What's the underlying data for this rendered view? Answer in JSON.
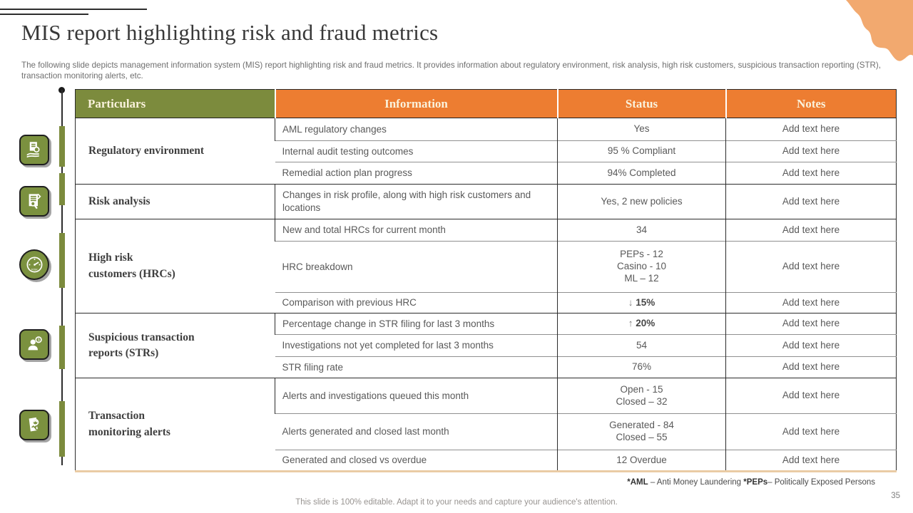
{
  "slide": {
    "title": "MIS report highlighting risk and fraud metrics",
    "subtitle": "The following slide depicts management information system (MIS) report highlighting risk and fraud metrics. It provides information about regulatory environment, risk analysis, high risk customers, suspicious transaction reporting (STR), transaction monitoring alerts, etc.",
    "page_number": "35",
    "editable_note": "This slide is 100% editable. Adapt it to your needs and capture your audience's attention.",
    "footnote": {
      "abbr1": "*AML",
      "text1": " – Anti Money Laundering ",
      "abbr2": "*PEPs",
      "text2": "– Politically Exposed Persons"
    }
  },
  "colors": {
    "olive_green": "#7c8b3d",
    "orange": "#ed7d31",
    "peach_blob": "#f2a96f",
    "header_text": "#faf2dc"
  },
  "icons": [
    {
      "name": "regulatory-hand-document-icon"
    },
    {
      "name": "audit-report-icon"
    },
    {
      "name": "risk-gauge-icon"
    },
    {
      "name": "suspicious-person-money-icon"
    },
    {
      "name": "monitoring-search-report-icon"
    }
  ],
  "table": {
    "headers": [
      "Particulars",
      "Information",
      "Status",
      "Notes"
    ],
    "groups": [
      {
        "particular": "Regulatory environment",
        "rows": [
          {
            "info": "AML regulatory changes",
            "status": "Yes",
            "notes": "Add text here"
          },
          {
            "info": "Internal audit testing outcomes",
            "status": "95 % Compliant",
            "notes": "Add text here"
          },
          {
            "info": "Remedial action plan progress",
            "status": "94% Completed",
            "notes": "Add text here"
          }
        ]
      },
      {
        "particular": "Risk analysis",
        "rows": [
          {
            "info": "Changes in risk profile, along with high risk customers and locations",
            "status": "Yes, 2 new policies",
            "notes": "Add text here"
          }
        ]
      },
      {
        "particular": "High risk\ncustomers (HRCs)",
        "rows": [
          {
            "info": "New and total HRCs for current month",
            "status": "34",
            "notes": "Add text here"
          },
          {
            "info": "HRC breakdown",
            "status_lines": [
              "PEPs - 12",
              "Casino - 10",
              "ML – 12"
            ],
            "notes": "Add text here"
          },
          {
            "info": "Comparison with previous HRC",
            "status_arrow": "↓",
            "status_bold": "15%",
            "notes": "Add text here"
          }
        ]
      },
      {
        "particular": "Suspicious transaction\nreports (STRs)",
        "rows": [
          {
            "info": "Percentage change in STR filing for last 3 months",
            "status_arrow": "↑",
            "status_bold": "20%",
            "notes": "Add text here"
          },
          {
            "info": "Investigations not yet completed for last 3 months",
            "status": "54",
            "notes": "Add text here"
          },
          {
            "info": "STR filing rate",
            "status": "76%",
            "notes": "Add text here"
          }
        ]
      },
      {
        "particular": "Transaction\nmonitoring alerts",
        "rows": [
          {
            "info": "Alerts and investigations queued this month",
            "status_lines": [
              "Open - 15",
              "Closed – 32"
            ],
            "notes": "Add text here"
          },
          {
            "info": "Alerts generated and closed last month",
            "status_lines": [
              "Generated - 84",
              "Closed – 55"
            ],
            "notes": "Add text here"
          },
          {
            "info": "Generated and closed vs overdue",
            "status": "12 Overdue",
            "notes": "Add text here"
          }
        ]
      }
    ]
  }
}
